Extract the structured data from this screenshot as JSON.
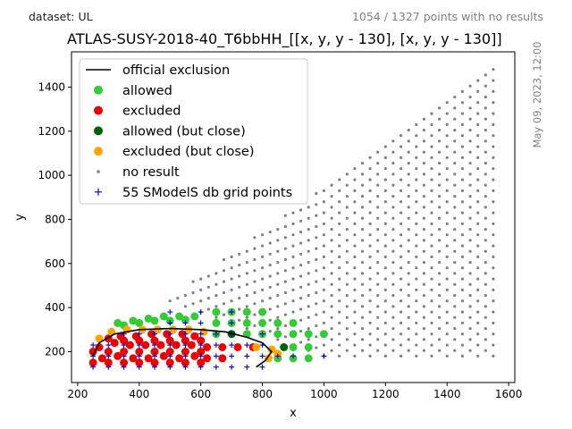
{
  "header": {
    "dataset": "dataset: UL",
    "points_summary": "1054 / 1327 points with no results",
    "timestamp": "May 09, 2023, 12:00"
  },
  "chart_data": {
    "type": "scatter",
    "title": "ATLAS-SUSY-2018-40_T6bbHH_[[x, y, y - 130], [x, y, y - 130]]",
    "xlabel": "x",
    "ylabel": "y",
    "xlim": [
      180,
      1620
    ],
    "ylim": [
      60,
      1560
    ],
    "xticks": [
      200,
      400,
      600,
      800,
      1000,
      1200,
      1400,
      1600
    ],
    "yticks": [
      200,
      400,
      600,
      800,
      1000,
      1200,
      1400
    ],
    "grid": false,
    "legend_position": "top-left",
    "colors": {
      "official": "#000000",
      "allowed": "#33cc33",
      "excluded": "#ee0000",
      "allowed_close": "#006400",
      "excluded_close": "#ffa500",
      "no_result": "#808080",
      "grid_points": "#0000dd"
    },
    "legend": [
      {
        "key": "official",
        "label": "official exclusion"
      },
      {
        "key": "allowed",
        "label": "allowed"
      },
      {
        "key": "excluded",
        "label": "excluded"
      },
      {
        "key": "allowed_close",
        "label": "allowed (but close)"
      },
      {
        "key": "excluded_close",
        "label": "excluded (but close)"
      },
      {
        "key": "no_result",
        "label": "no result"
      },
      {
        "key": "grid_points",
        "label": "55 SModelS db grid points"
      }
    ],
    "official_exclusion": [
      [
        250,
        180
      ],
      [
        270,
        240
      ],
      [
        320,
        280
      ],
      [
        400,
        300
      ],
      [
        500,
        305
      ],
      [
        600,
        300
      ],
      [
        680,
        290
      ],
      [
        750,
        265
      ],
      [
        800,
        240
      ],
      [
        830,
        200
      ],
      [
        810,
        160
      ],
      [
        780,
        130
      ]
    ],
    "no_result_grid": {
      "x_start": 500,
      "x_step": 50,
      "x_max": 1550,
      "y_step": 50,
      "y_min_for_x": [
        [
          500,
          430
        ],
        [
          1000,
          180
        ]
      ],
      "y_max_rule": "y <= x - 50",
      "spacing_hint": 25
    },
    "allowed": [
      [
        650,
        380
      ],
      [
        700,
        380
      ],
      [
        750,
        380
      ],
      [
        800,
        380
      ],
      [
        650,
        330
      ],
      [
        700,
        330
      ],
      [
        750,
        330
      ],
      [
        800,
        330
      ],
      [
        850,
        330
      ],
      [
        900,
        330
      ],
      [
        650,
        280
      ],
      [
        700,
        280
      ],
      [
        750,
        280
      ],
      [
        800,
        280
      ],
      [
        850,
        280
      ],
      [
        900,
        280
      ],
      [
        950,
        280
      ],
      [
        1000,
        280
      ],
      [
        900,
        220
      ],
      [
        950,
        220
      ],
      [
        850,
        170
      ],
      [
        900,
        170
      ],
      [
        950,
        170
      ],
      [
        330,
        330
      ],
      [
        380,
        340
      ],
      [
        430,
        350
      ],
      [
        480,
        360
      ],
      [
        530,
        360
      ],
      [
        580,
        360
      ],
      [
        350,
        320
      ],
      [
        400,
        330
      ],
      [
        450,
        340
      ],
      [
        500,
        340
      ],
      [
        550,
        345
      ]
    ],
    "excluded": [
      [
        250,
        150
      ],
      [
        250,
        200
      ],
      [
        280,
        170
      ],
      [
        300,
        150
      ],
      [
        300,
        200
      ],
      [
        320,
        240
      ],
      [
        350,
        150
      ],
      [
        350,
        200
      ],
      [
        350,
        250
      ],
      [
        380,
        170
      ],
      [
        400,
        150
      ],
      [
        400,
        200
      ],
      [
        400,
        250
      ],
      [
        430,
        170
      ],
      [
        450,
        150
      ],
      [
        450,
        200
      ],
      [
        450,
        250
      ],
      [
        480,
        180
      ],
      [
        500,
        150
      ],
      [
        500,
        200
      ],
      [
        500,
        250
      ],
      [
        530,
        170
      ],
      [
        550,
        150
      ],
      [
        550,
        200
      ],
      [
        550,
        250
      ],
      [
        580,
        180
      ],
      [
        600,
        150
      ],
      [
        600,
        200
      ],
      [
        600,
        250
      ],
      [
        620,
        220
      ],
      [
        620,
        170
      ],
      [
        670,
        220
      ],
      [
        670,
        170
      ],
      [
        720,
        220
      ],
      [
        770,
        220
      ],
      [
        270,
        220
      ],
      [
        330,
        180
      ],
      [
        370,
        230
      ],
      [
        420,
        230
      ],
      [
        470,
        230
      ],
      [
        520,
        230
      ],
      [
        570,
        230
      ],
      [
        440,
        280
      ],
      [
        490,
        280
      ],
      [
        540,
        280
      ],
      [
        390,
        270
      ],
      [
        340,
        270
      ],
      [
        300,
        260
      ],
      [
        580,
        270
      ]
    ],
    "allowed_close": [
      [
        700,
        280
      ],
      [
        870,
        220
      ]
    ],
    "excluded_close": [
      [
        270,
        260
      ],
      [
        310,
        290
      ],
      [
        360,
        300
      ],
      [
        410,
        300
      ],
      [
        460,
        300
      ],
      [
        510,
        300
      ],
      [
        560,
        300
      ],
      [
        610,
        290
      ],
      [
        780,
        220
      ],
      [
        830,
        210
      ],
      [
        820,
        170
      ],
      [
        850,
        190
      ]
    ],
    "smodels_grid": [
      [
        250,
        130
      ],
      [
        250,
        180
      ],
      [
        250,
        230
      ],
      [
        300,
        130
      ],
      [
        300,
        180
      ],
      [
        300,
        230
      ],
      [
        350,
        130
      ],
      [
        350,
        180
      ],
      [
        350,
        230
      ],
      [
        350,
        280
      ],
      [
        400,
        130
      ],
      [
        400,
        180
      ],
      [
        400,
        230
      ],
      [
        400,
        280
      ],
      [
        450,
        130
      ],
      [
        450,
        180
      ],
      [
        450,
        230
      ],
      [
        450,
        280
      ],
      [
        500,
        130
      ],
      [
        500,
        180
      ],
      [
        500,
        230
      ],
      [
        500,
        280
      ],
      [
        500,
        330
      ],
      [
        500,
        380
      ],
      [
        550,
        130
      ],
      [
        550,
        180
      ],
      [
        550,
        230
      ],
      [
        550,
        280
      ],
      [
        550,
        330
      ],
      [
        600,
        130
      ],
      [
        600,
        180
      ],
      [
        600,
        230
      ],
      [
        600,
        280
      ],
      [
        600,
        330
      ],
      [
        600,
        380
      ],
      [
        650,
        130
      ],
      [
        650,
        180
      ],
      [
        650,
        230
      ],
      [
        650,
        280
      ],
      [
        700,
        130
      ],
      [
        700,
        180
      ],
      [
        700,
        230
      ],
      [
        700,
        280
      ],
      [
        700,
        330
      ],
      [
        700,
        380
      ],
      [
        750,
        130
      ],
      [
        750,
        180
      ],
      [
        750,
        230
      ],
      [
        800,
        130
      ],
      [
        800,
        180
      ],
      [
        800,
        230
      ],
      [
        800,
        280
      ],
      [
        850,
        180
      ],
      [
        900,
        180
      ],
      [
        1000,
        180
      ]
    ]
  }
}
